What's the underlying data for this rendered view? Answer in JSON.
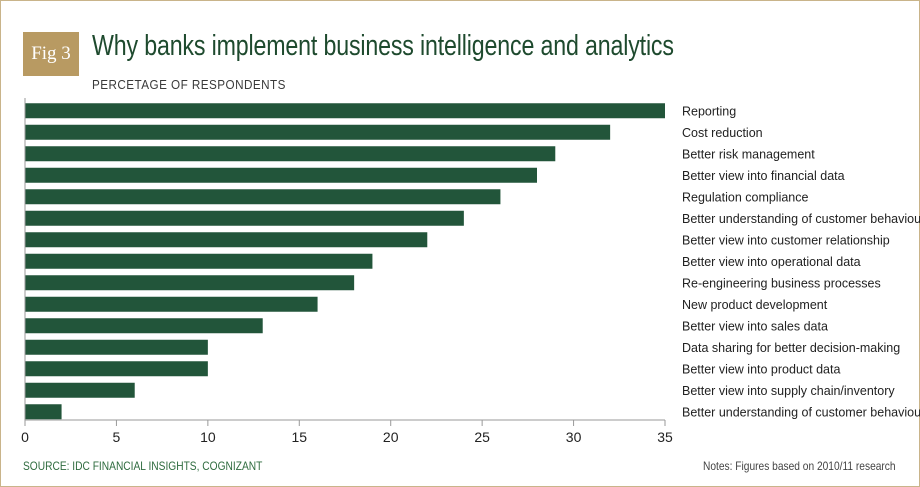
{
  "figure": {
    "badge": "Fig 3",
    "title": "Why banks implement business intelligence and analytics",
    "subtitle": "PERCETAGE OF RESPONDENTS",
    "source": "SOURCE: IDC FINANCIAL INSIGHTS, COGNIZANT",
    "notes": "Notes: Figures based on 2010/11 research",
    "accent_color": "#b89a62",
    "bar_color": "#22553a",
    "title_color": "#1e4a2e"
  },
  "chart_data": {
    "type": "bar",
    "orientation": "horizontal",
    "title": "Why banks implement business intelligence and analytics",
    "xlabel": "",
    "ylabel": "",
    "xlim": [
      0,
      35
    ],
    "xticks": [
      0,
      5,
      10,
      15,
      20,
      25,
      30,
      35
    ],
    "grid": false,
    "categories": [
      "Reporting",
      "Cost reduction",
      "Better risk management",
      "Better view into financial data",
      "Regulation compliance",
      "Better understanding of customer behaviour",
      "Better view into customer relationship",
      "Better view into operational data",
      "Re-engineering business processes",
      "New product development",
      "Better view into sales data",
      "Data sharing for better decision-making",
      "Better view into product data",
      "Better view into supply chain/inventory",
      "Better understanding of customer behaviour"
    ],
    "values": [
      35,
      32,
      29,
      28,
      26,
      24,
      22,
      19,
      18,
      16,
      13,
      10,
      10,
      6,
      2
    ]
  }
}
